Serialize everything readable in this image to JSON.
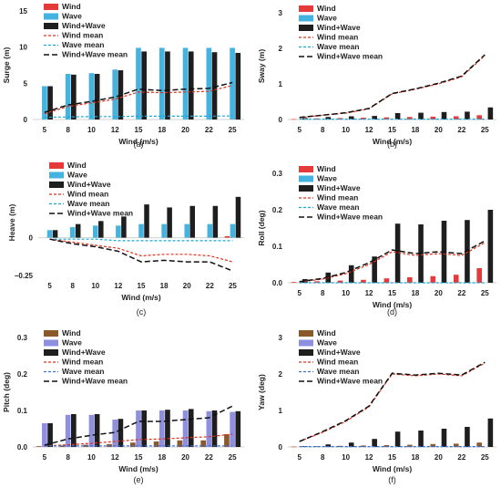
{
  "colors": {
    "wind_a": "#e53a3a",
    "wave_a": "#44b3e0",
    "combo": "#1e1e1e",
    "wind_mean": "#e0321a",
    "wave_mean": "#1aa7d6",
    "combo_mean": "#111111",
    "wind_b": "#8b5a2b",
    "wave_b": "#8f8fe0",
    "wave_mean_b": "#3a6fd8"
  },
  "chart_data": [
    {
      "type": "bar",
      "panel_label": "(a)",
      "legend_set": "a",
      "ylabel": "Surge (m)",
      "xlabel": "Wind (m/s)",
      "categories": [
        "5",
        "8",
        "10",
        "12",
        "15",
        "18",
        "20",
        "22",
        "25"
      ],
      "ylim": [
        0,
        15
      ],
      "yticks": [
        "0",
        "5",
        "10",
        "15"
      ],
      "ytick_values": [
        0,
        5,
        10,
        15
      ],
      "grid": false,
      "legend_position": "top-left",
      "bar_series": [
        {
          "name": "Wind",
          "values": [
            0,
            0,
            0,
            0,
            0,
            0,
            0,
            0,
            0
          ]
        },
        {
          "name": "Wave",
          "values": [
            4.6,
            6.3,
            6.4,
            6.9,
            9.9,
            9.9,
            9.9,
            9.9,
            9.9
          ]
        },
        {
          "name": "Wind+Wave",
          "values": [
            4.6,
            6.2,
            6.3,
            6.8,
            9.4,
            9.4,
            9.4,
            9.3,
            9.2
          ]
        }
      ],
      "line_series": [
        {
          "name": "Wind mean",
          "values": [
            0.8,
            1.8,
            2.3,
            2.8,
            3.8,
            3.7,
            3.8,
            3.9,
            4.7
          ]
        },
        {
          "name": "Wave mean",
          "values": [
            0.3,
            0.35,
            0.4,
            0.4,
            0.45,
            0.45,
            0.45,
            0.45,
            0.5
          ]
        },
        {
          "name": "Wind+Wave mean",
          "values": [
            1.0,
            2.0,
            2.5,
            3.1,
            4.2,
            4.0,
            4.2,
            4.3,
            5.1
          ]
        }
      ]
    },
    {
      "type": "bar",
      "panel_label": "(b)",
      "legend_set": "a",
      "ylabel": "Sway (m)",
      "xlabel": "Wind (m/s)",
      "categories": [
        "5",
        "8",
        "10",
        "12",
        "15",
        "18",
        "20",
        "22",
        "25"
      ],
      "ylim": [
        0,
        3
      ],
      "yticks": [
        "0",
        "1",
        "2",
        "3"
      ],
      "ytick_values": [
        0,
        1,
        2,
        3
      ],
      "grid": false,
      "legend_position": "top-left",
      "bar_series": [
        {
          "name": "Wind",
          "values": [
            0.01,
            0.03,
            0.04,
            0.05,
            0.06,
            0.07,
            0.08,
            0.09,
            0.12
          ]
        },
        {
          "name": "Wave",
          "values": [
            0,
            0,
            0,
            0,
            0,
            0,
            0,
            0,
            0
          ]
        },
        {
          "name": "Wind+Wave",
          "values": [
            0.04,
            0.07,
            0.09,
            0.1,
            0.18,
            0.19,
            0.21,
            0.22,
            0.34
          ]
        }
      ],
      "line_series": [
        {
          "name": "Wind mean",
          "values": [
            0.05,
            0.12,
            0.18,
            0.3,
            0.72,
            0.85,
            1.0,
            1.2,
            1.8
          ]
        },
        {
          "name": "Wave mean",
          "values": [
            0.01,
            0.01,
            0.01,
            0.01,
            0.01,
            0.01,
            0.01,
            0.01,
            0.01
          ]
        },
        {
          "name": "Wind+Wave mean",
          "values": [
            0.06,
            0.12,
            0.19,
            0.31,
            0.73,
            0.86,
            1.02,
            1.22,
            1.82
          ]
        }
      ]
    },
    {
      "type": "bar",
      "panel_label": "(c)",
      "legend_set": "a",
      "ylabel": "Heave (m)",
      "xlabel": "Wind (m/s)",
      "categories": [
        "5",
        "8",
        "10",
        "12",
        "15",
        "18",
        "20",
        "22",
        "25"
      ],
      "ylim": [
        -0.25,
        0.45
      ],
      "yticks": [
        "0",
        "−0.25"
      ],
      "ytick_values": [
        0,
        -0.25
      ],
      "grid": false,
      "legend_position": "top-left",
      "bar_series": [
        {
          "name": "Wind",
          "values": [
            0,
            0,
            0,
            0,
            0,
            0,
            0,
            0,
            0.01
          ]
        },
        {
          "name": "Wave",
          "values": [
            0.05,
            0.07,
            0.08,
            0.08,
            0.09,
            0.09,
            0.09,
            0.09,
            0.09
          ]
        },
        {
          "name": "Wind+Wave",
          "values": [
            0.05,
            0.09,
            0.11,
            0.14,
            0.22,
            0.2,
            0.21,
            0.21,
            0.27
          ]
        }
      ],
      "line_series": [
        {
          "name": "Wind mean",
          "values": [
            -0.01,
            -0.03,
            -0.05,
            -0.07,
            -0.12,
            -0.11,
            -0.11,
            -0.12,
            -0.16
          ]
        },
        {
          "name": "Wave mean",
          "values": [
            -0.01,
            -0.01,
            -0.01,
            -0.02,
            -0.02,
            -0.02,
            -0.02,
            -0.02,
            -0.02
          ]
        },
        {
          "name": "Wind+Wave mean",
          "values": [
            -0.01,
            -0.04,
            -0.06,
            -0.09,
            -0.16,
            -0.15,
            -0.16,
            -0.16,
            -0.22
          ]
        }
      ]
    },
    {
      "type": "bar",
      "panel_label": "(d)",
      "legend_set": "a",
      "ylabel": "Roll (deg)",
      "xlabel": "Wind (m/s)",
      "categories": [
        "5",
        "8",
        "10",
        "12",
        "15",
        "18",
        "20",
        "22",
        "25"
      ],
      "ylim": [
        0,
        0.3
      ],
      "yticks": [
        "0.0",
        "0.1",
        "0.2",
        "0.3"
      ],
      "ytick_values": [
        0,
        0.1,
        0.2,
        0.3
      ],
      "grid": false,
      "legend_position": "top-left",
      "bar_series": [
        {
          "name": "Wind",
          "values": [
            0.002,
            0.004,
            0.006,
            0.008,
            0.012,
            0.015,
            0.018,
            0.022,
            0.04
          ]
        },
        {
          "name": "Wave",
          "values": [
            0,
            0,
            0,
            0,
            0,
            0,
            0,
            0,
            0
          ]
        },
        {
          "name": "Wind+Wave",
          "values": [
            0.01,
            0.028,
            0.048,
            0.072,
            0.162,
            0.16,
            0.17,
            0.172,
            0.2
          ]
        }
      ],
      "line_series": [
        {
          "name": "Wind mean",
          "values": [
            0.002,
            0.01,
            0.025,
            0.05,
            0.085,
            0.075,
            0.08,
            0.075,
            0.11
          ]
        },
        {
          "name": "Wave mean",
          "values": [
            0,
            0,
            0,
            0,
            0,
            0,
            0,
            0,
            0
          ]
        },
        {
          "name": "Wind+Wave mean",
          "values": [
            0.003,
            0.012,
            0.028,
            0.055,
            0.09,
            0.08,
            0.085,
            0.08,
            0.115
          ]
        }
      ]
    },
    {
      "type": "bar",
      "panel_label": "(e)",
      "legend_set": "b",
      "ylabel": "Pitch (deg)",
      "xlabel": "Wind (m/s)",
      "categories": [
        "5",
        "8",
        "10",
        "12",
        "15",
        "18",
        "20",
        "22",
        "25"
      ],
      "ylim": [
        0,
        0.3
      ],
      "yticks": [
        "0.0",
        "0.1",
        "0.2",
        "0.3"
      ],
      "ytick_values": [
        0,
        0.1,
        0.2,
        0.3
      ],
      "grid": false,
      "legend_position": "top-left",
      "bar_series": [
        {
          "name": "Wind",
          "values": [
            0.002,
            0.004,
            0.006,
            0.008,
            0.012,
            0.015,
            0.018,
            0.018,
            0.035
          ]
        },
        {
          "name": "Wave",
          "values": [
            0.065,
            0.088,
            0.088,
            0.075,
            0.1,
            0.1,
            0.1,
            0.098,
            0.096
          ]
        },
        {
          "name": "Wind+Wave",
          "values": [
            0.065,
            0.09,
            0.09,
            0.077,
            0.1,
            0.102,
            0.104,
            0.1,
            0.098
          ]
        }
      ],
      "line_series": [
        {
          "name": "Wind mean",
          "values": [
            0.003,
            0.006,
            0.01,
            0.015,
            0.02,
            0.022,
            0.025,
            0.028,
            0.035
          ]
        },
        {
          "name": "Wave mean",
          "values": [
            0.003,
            0.003,
            0.003,
            0.003,
            0.003,
            0.003,
            0.003,
            0.003,
            0.003
          ]
        },
        {
          "name": "Wind+Wave mean",
          "values": [
            0.005,
            0.022,
            0.032,
            0.04,
            0.07,
            0.07,
            0.075,
            0.08,
            0.112
          ]
        }
      ]
    },
    {
      "type": "bar",
      "panel_label": "(f)",
      "legend_set": "b",
      "ylabel": "Yaw (deg)",
      "xlabel": "Wind (m/s)",
      "categories": [
        "5",
        "8",
        "10",
        "12",
        "15",
        "18",
        "20",
        "22",
        "25"
      ],
      "ylim": [
        0,
        3
      ],
      "yticks": [
        "0",
        "1",
        "2",
        "3"
      ],
      "ytick_values": [
        0,
        1,
        2,
        3
      ],
      "grid": false,
      "legend_position": "top-left",
      "bar_series": [
        {
          "name": "Wind",
          "values": [
            0.01,
            0.02,
            0.03,
            0.04,
            0.05,
            0.06,
            0.08,
            0.09,
            0.12
          ]
        },
        {
          "name": "Wave",
          "values": [
            0,
            0,
            0,
            0,
            0,
            0,
            0,
            0,
            0
          ]
        },
        {
          "name": "Wind+Wave",
          "values": [
            0.02,
            0.07,
            0.12,
            0.22,
            0.42,
            0.45,
            0.5,
            0.55,
            0.78
          ]
        }
      ],
      "line_series": [
        {
          "name": "Wind mean",
          "values": [
            0.15,
            0.4,
            0.7,
            1.1,
            2.0,
            1.95,
            2.0,
            1.95,
            2.3
          ]
        },
        {
          "name": "Wave mean",
          "values": [
            0.01,
            0.01,
            0.01,
            0.01,
            0.01,
            0.01,
            0.01,
            0.01,
            0.01
          ]
        },
        {
          "name": "Wind+Wave mean",
          "values": [
            0.15,
            0.42,
            0.72,
            1.12,
            2.02,
            1.97,
            2.02,
            1.97,
            2.32
          ]
        }
      ]
    }
  ]
}
